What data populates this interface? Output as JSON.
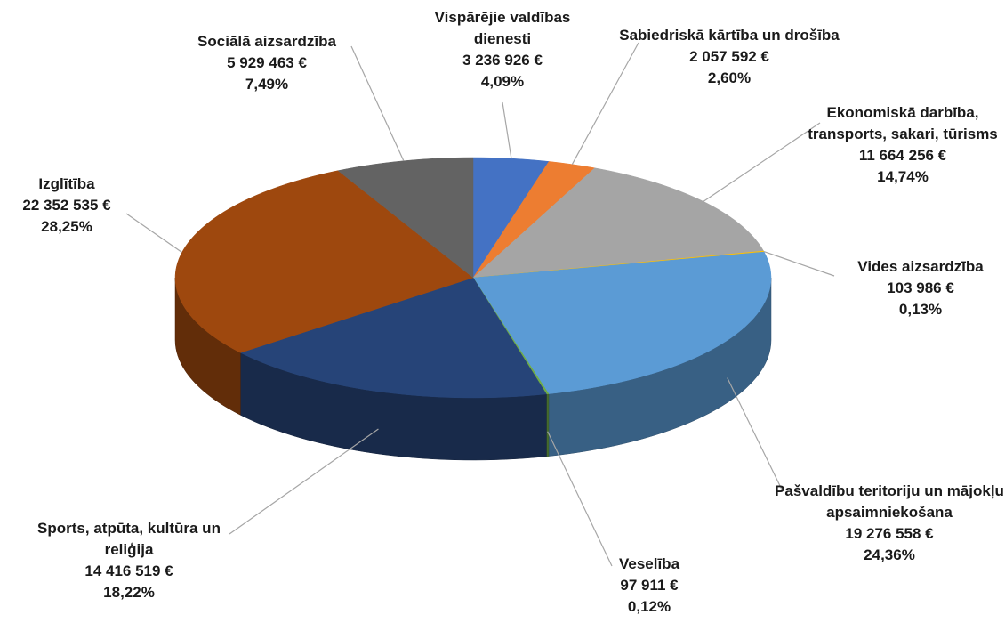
{
  "chart_data": {
    "type": "pie3d",
    "categories": [
      "Vispārējie valdības dienesti",
      "Sabiedriskā kārtība un drošība",
      "Ekonomiskā darbība, transports, sakari, tūrisms",
      "Vides aizsardzība",
      "Pašvaldību teritoriju un mājokļu apsaimniekošana",
      "Veselība",
      "Sports, atpūta, kultūra un reliģija",
      "Izglītība",
      "Sociālā aizsardzība"
    ],
    "values": [
      3236926,
      2057592,
      11664256,
      103986,
      19276558,
      97911,
      14416519,
      22352535,
      5929463
    ],
    "value_labels": [
      "3 236 926 €",
      "2 057 592 €",
      "11 664 256 €",
      "103 986 €",
      "19 276 558 €",
      "97 911 €",
      "14 416 519 €",
      "22 352 535 €",
      "5 929 463 €"
    ],
    "percentages": [
      4.09,
      2.6,
      14.74,
      0.13,
      24.36,
      0.12,
      18.22,
      28.25,
      7.49
    ],
    "percentage_labels": [
      "4,09%",
      "2,60%",
      "14,74%",
      "0,13%",
      "24,36%",
      "0,12%",
      "18,22%",
      "28,25%",
      "7,49%"
    ],
    "colors": [
      "#4472c4",
      "#ed7d31",
      "#a5a5a5",
      "#ffc000",
      "#5b9bd5",
      "#70ad47",
      "#264478",
      "#9e480e",
      "#636363"
    ]
  }
}
